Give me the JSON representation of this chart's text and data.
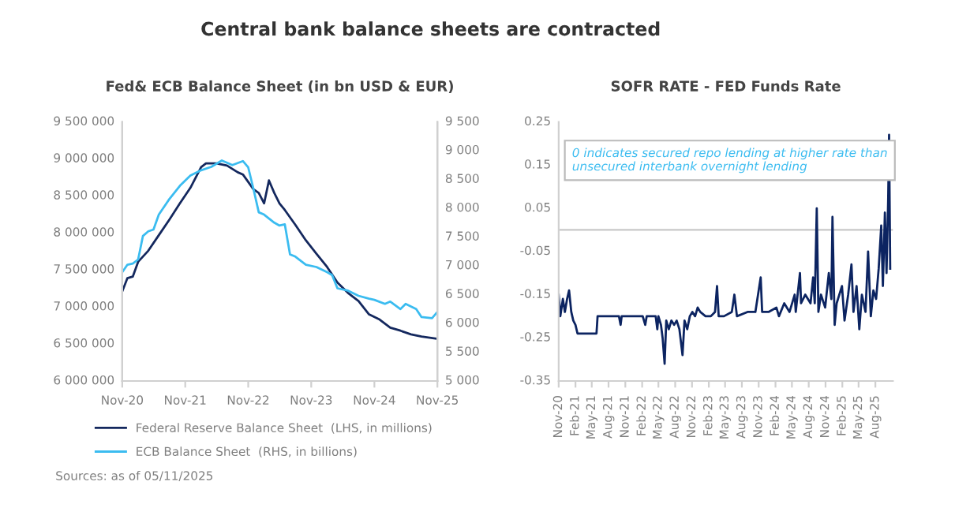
{
  "chart_data": [
    {
      "type": "line",
      "title": "Central bank balance sheets are contracted",
      "subtitle": "Fed& ECB Balance Sheet (in bn USD & EUR)",
      "xlim": [
        "2020-11",
        "2025-11"
      ],
      "xticks": [
        {
          "value": "2020-11",
          "label": "Nov-20"
        },
        {
          "value": "2021-11",
          "label": "Nov-21"
        },
        {
          "value": "2022-11",
          "label": "Nov-22"
        },
        {
          "value": "2023-11",
          "label": "Nov-23"
        },
        {
          "value": "2024-11",
          "label": "Nov-24"
        },
        {
          "value": "2025-11",
          "label": "Nov-25"
        }
      ],
      "ylim": [
        6000000,
        9500000
      ],
      "yticks": [
        {
          "value": 6000000,
          "label": "6 000 000"
        },
        {
          "value": 6500000,
          "label": "6 500 000"
        },
        {
          "value": 7000000,
          "label": "7 000 000"
        },
        {
          "value": 7500000,
          "label": "7 500 000"
        },
        {
          "value": 8000000,
          "label": "8 000 000"
        },
        {
          "value": 8500000,
          "label": "8 500 000"
        },
        {
          "value": 9000000,
          "label": "9 000 000"
        },
        {
          "value": 9500000,
          "label": "9 500 000"
        }
      ],
      "y2lim": [
        5000,
        9500
      ],
      "y2ticks": [
        {
          "value": 5000,
          "label": "5 000"
        },
        {
          "value": 5500,
          "label": "5 500"
        },
        {
          "value": 6000,
          "label": "6 000"
        },
        {
          "value": 6500,
          "label": "6 500"
        },
        {
          "value": 7000,
          "label": "7 000"
        },
        {
          "value": 7500,
          "label": "7 500"
        },
        {
          "value": 8000,
          "label": "8 000"
        },
        {
          "value": 8500,
          "label": "8 500"
        },
        {
          "value": 9000,
          "label": "9 000"
        },
        {
          "value": 9500,
          "label": "9 500"
        }
      ],
      "legend": "bottom",
      "annotations": [
        "Sources: as of 05/11/2025"
      ],
      "series": [
        {
          "name": "Federal Reserve Balance Sheet  (LHS, in millions)",
          "color": "#14285e",
          "x": [
            "2020-11",
            "2020-12",
            "2021-01",
            "2021-02",
            "2021-04",
            "2021-06",
            "2021-08",
            "2021-10",
            "2021-12",
            "2022-02",
            "2022-03",
            "2022-05",
            "2022-07",
            "2022-09",
            "2022-10",
            "2022-11",
            "2022-12",
            "2023-01",
            "2023-02",
            "2023-03",
            "2023-04",
            "2023-05",
            "2023-06",
            "2023-08",
            "2023-10",
            "2023-12",
            "2024-02",
            "2024-04",
            "2024-06",
            "2024-08",
            "2024-10",
            "2024-12",
            "2025-02",
            "2025-04",
            "2025-06",
            "2025-08",
            "2025-11"
          ],
          "values": [
            7210000,
            7390000,
            7410000,
            7610000,
            7760000,
            7970000,
            8180000,
            8400000,
            8610000,
            8890000,
            8940000,
            8940000,
            8910000,
            8820000,
            8790000,
            8690000,
            8590000,
            8540000,
            8400000,
            8710000,
            8540000,
            8400000,
            8310000,
            8110000,
            7900000,
            7720000,
            7540000,
            7330000,
            7190000,
            7080000,
            6900000,
            6830000,
            6720000,
            6680000,
            6630000,
            6600000,
            6570000
          ]
        },
        {
          "name": "ECB Balance Sheet  (RHS, in billions)",
          "color": "#3bbcf0",
          "axis": "y2",
          "x": [
            "2020-11",
            "2020-12",
            "2021-01",
            "2021-02",
            "2021-03",
            "2021-04",
            "2021-05",
            "2021-06",
            "2021-08",
            "2021-10",
            "2021-12",
            "2022-02",
            "2022-04",
            "2022-06",
            "2022-08",
            "2022-10",
            "2022-11",
            "2022-12",
            "2023-01",
            "2023-02",
            "2023-04",
            "2023-05",
            "2023-06",
            "2023-07",
            "2023-08",
            "2023-10",
            "2023-12",
            "2024-02",
            "2024-03",
            "2024-04",
            "2024-06",
            "2024-08",
            "2024-10",
            "2024-11",
            "2025-01",
            "2025-02",
            "2025-04",
            "2025-05",
            "2025-07",
            "2025-08",
            "2025-10",
            "2025-11"
          ],
          "values": [
            6890,
            7020,
            7040,
            7110,
            7520,
            7600,
            7630,
            7890,
            8160,
            8390,
            8570,
            8660,
            8720,
            8830,
            8750,
            8820,
            8710,
            8340,
            7930,
            7890,
            7750,
            7700,
            7720,
            7200,
            7160,
            7020,
            6980,
            6890,
            6840,
            6610,
            6570,
            6480,
            6430,
            6410,
            6340,
            6380,
            6250,
            6340,
            6250,
            6110,
            6090,
            6200
          ]
        }
      ]
    },
    {
      "type": "line",
      "title": "SOFR RATE - FED Funds Rate",
      "xlim": [
        "2020-11-01",
        "2025-11-05"
      ],
      "xticks": [
        {
          "value": "2020-11",
          "label": "Nov-20"
        },
        {
          "value": "2021-02",
          "label": "Feb-21"
        },
        {
          "value": "2021-05",
          "label": "May-21"
        },
        {
          "value": "2021-08",
          "label": "Aug-21"
        },
        {
          "value": "2021-11",
          "label": "Nov-21"
        },
        {
          "value": "2022-02",
          "label": "Feb-22"
        },
        {
          "value": "2022-05",
          "label": "May-22"
        },
        {
          "value": "2022-08",
          "label": "Aug-22"
        },
        {
          "value": "2022-11",
          "label": "Nov-22"
        },
        {
          "value": "2023-02",
          "label": "Feb-23"
        },
        {
          "value": "2023-05",
          "label": "May-23"
        },
        {
          "value": "2023-08",
          "label": "Aug-23"
        },
        {
          "value": "2023-11",
          "label": "Nov-23"
        },
        {
          "value": "2024-02",
          "label": "Feb-24"
        },
        {
          "value": "2024-05",
          "label": "May-24"
        },
        {
          "value": "2024-08",
          "label": "Aug-24"
        },
        {
          "value": "2024-11",
          "label": "Nov-24"
        },
        {
          "value": "2025-02",
          "label": "Feb-25"
        },
        {
          "value": "2025-05",
          "label": "May-25"
        },
        {
          "value": "2025-08",
          "label": "Aug-25"
        }
      ],
      "ylim": [
        -0.35,
        0.25
      ],
      "yticks": [
        -0.35,
        -0.25,
        -0.15,
        -0.05,
        0.05,
        0.15,
        0.25
      ],
      "ref_lines": [
        {
          "axis": "y",
          "value": 0,
          "color": "#c8c8c8"
        }
      ],
      "annotations": [
        "0 indicates secured repo lending at higher rate than unsecured interbank overnight lending"
      ],
      "series": [
        {
          "color": "#0c2461",
          "x": [
            "2020-11-01",
            "2020-11-10",
            "2020-11-24",
            "2020-12-05",
            "2020-12-17",
            "2020-12-28",
            "2021-01-09",
            "2021-01-20",
            "2021-02-01",
            "2021-02-12",
            "2021-05-27",
            "2021-06-02",
            "2021-09-27",
            "2021-10-06",
            "2021-10-12",
            "2022-02-04",
            "2022-02-18",
            "2022-02-26",
            "2022-04-16",
            "2022-04-25",
            "2022-05-01",
            "2022-05-15",
            "2022-05-24",
            "2022-06-04",
            "2022-06-13",
            "2022-06-27",
            "2022-07-11",
            "2022-07-26",
            "2022-08-09",
            "2022-08-24",
            "2022-09-10",
            "2022-09-21",
            "2022-10-06",
            "2022-10-20",
            "2022-11-03",
            "2022-11-18",
            "2022-12-02",
            "2022-12-16",
            "2023-01-14",
            "2023-02-12",
            "2023-03-07",
            "2023-03-18",
            "2023-03-27",
            "2023-04-25",
            "2023-06-07",
            "2023-06-21",
            "2023-07-05",
            "2023-09-01",
            "2023-10-14",
            "2023-11-12",
            "2023-11-20",
            "2023-12-25",
            "2024-02-06",
            "2024-02-20",
            "2024-03-20",
            "2024-04-18",
            "2024-05-16",
            "2024-05-22",
            "2024-06-14",
            "2024-06-20",
            "2024-07-13",
            "2024-08-11",
            "2024-08-25",
            "2024-09-03",
            "2024-09-14",
            "2024-09-23",
            "2024-10-07",
            "2024-10-30",
            "2024-11-19",
            "2024-12-03",
            "2024-12-09",
            "2024-12-21",
            "2025-01-01",
            "2025-01-30",
            "2025-02-13",
            "2025-03-05",
            "2025-03-23",
            "2025-04-03",
            "2025-04-20",
            "2025-05-05",
            "2025-05-19",
            "2025-06-08",
            "2025-06-22",
            "2025-07-07",
            "2025-07-21",
            "2025-08-05",
            "2025-08-19",
            "2025-09-02",
            "2025-09-11",
            "2025-09-22",
            "2025-10-01",
            "2025-10-10",
            "2025-10-15",
            "2025-10-21"
          ],
          "values": [
            -0.15,
            -0.2,
            -0.16,
            -0.19,
            -0.16,
            -0.14,
            -0.19,
            -0.21,
            -0.22,
            -0.24,
            -0.24,
            -0.2,
            -0.2,
            -0.22,
            -0.2,
            -0.2,
            -0.22,
            -0.2,
            -0.2,
            -0.23,
            -0.2,
            -0.22,
            -0.25,
            -0.31,
            -0.21,
            -0.23,
            -0.21,
            -0.22,
            -0.21,
            -0.23,
            -0.29,
            -0.21,
            -0.23,
            -0.2,
            -0.19,
            -0.2,
            -0.18,
            -0.19,
            -0.2,
            -0.2,
            -0.19,
            -0.13,
            -0.2,
            -0.2,
            -0.19,
            -0.15,
            -0.2,
            -0.19,
            -0.19,
            -0.11,
            -0.19,
            -0.19,
            -0.18,
            -0.2,
            -0.17,
            -0.19,
            -0.15,
            -0.19,
            -0.1,
            -0.17,
            -0.15,
            -0.17,
            -0.11,
            -0.17,
            0.05,
            -0.19,
            -0.15,
            -0.18,
            -0.1,
            -0.16,
            0.03,
            -0.22,
            -0.17,
            -0.13,
            -0.21,
            -0.15,
            -0.08,
            -0.19,
            -0.13,
            -0.23,
            -0.15,
            -0.19,
            -0.05,
            -0.2,
            -0.14,
            -0.16,
            -0.09,
            0.01,
            -0.13,
            0.04,
            -0.1,
            0.07,
            0.22,
            -0.09
          ]
        }
      ]
    }
  ]
}
